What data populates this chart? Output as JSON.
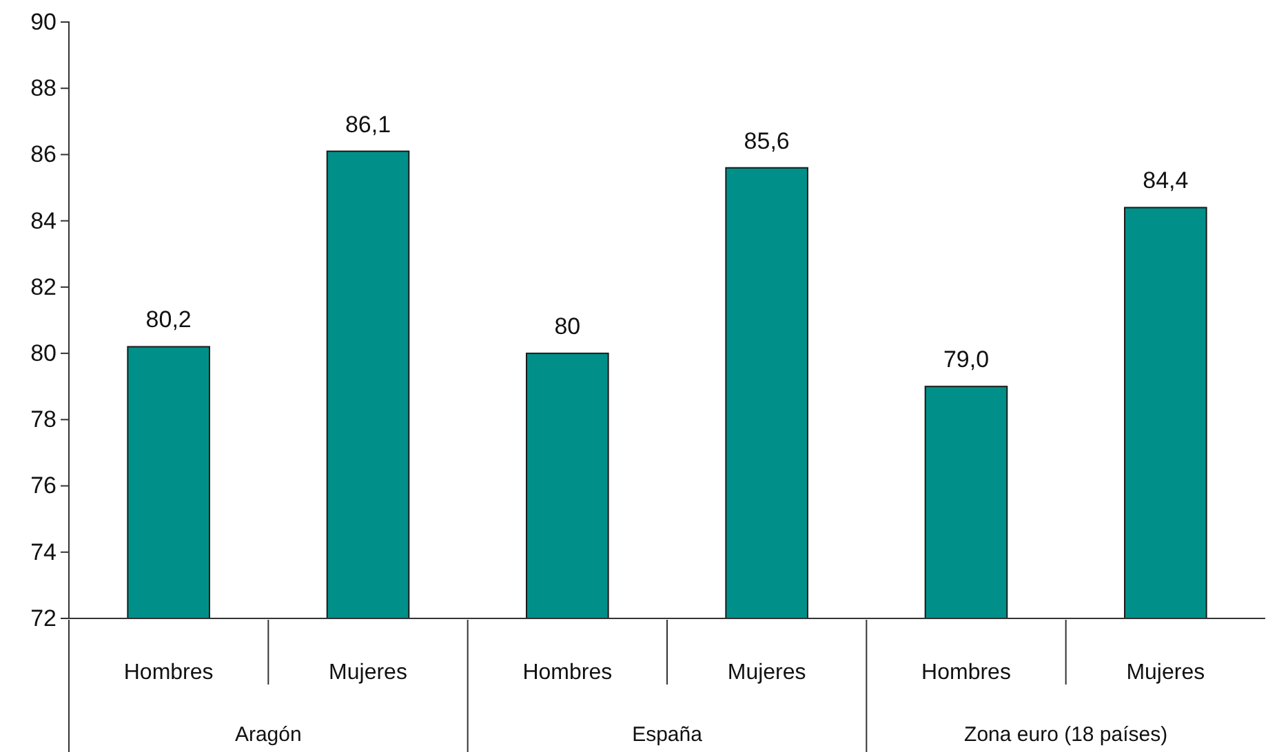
{
  "chart_data": {
    "type": "bar",
    "categories": [
      "Hombres",
      "Mujeres",
      "Hombres",
      "Mujeres",
      "Hombres",
      "Mujeres"
    ],
    "values": [
      80.2,
      86.1,
      80,
      85.6,
      79.0,
      84.4
    ],
    "value_labels": [
      "80,2",
      "86,1",
      "80",
      "85,6",
      "79,0",
      "84,4"
    ],
    "color": "#009089",
    "ylim": [
      72,
      90
    ],
    "yticks": [
      72,
      74,
      76,
      78,
      80,
      82,
      84,
      86,
      88,
      90
    ],
    "annotations": [
      "Aragón",
      "España",
      "Zona euro (18 países)"
    ]
  }
}
